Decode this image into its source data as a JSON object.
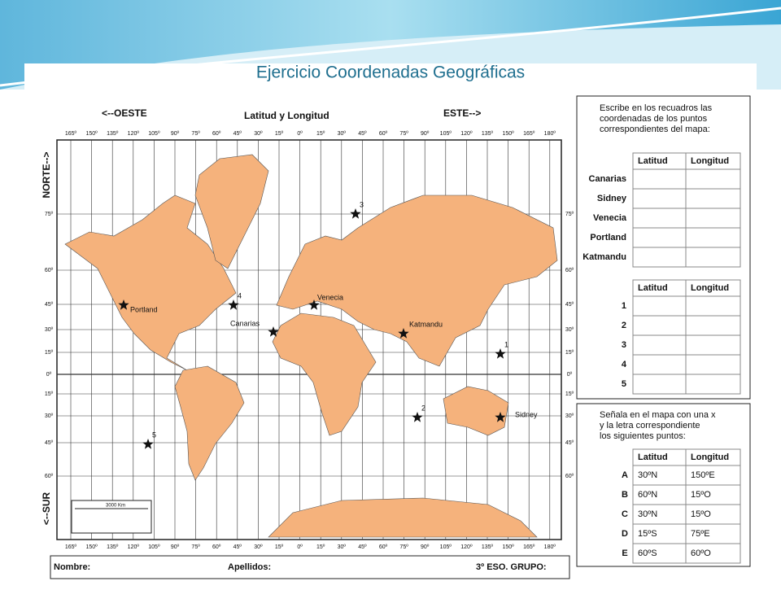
{
  "title": "Ejercicio Coordenadas Geográficas",
  "map": {
    "heading": "Latitud y Longitud",
    "west": "<--OESTE",
    "east": "ESTE-->",
    "north": "NORTE-->",
    "south": "<--SUR",
    "longitudes": [
      "165º",
      "150º",
      "135º",
      "120º",
      "105º",
      "90º",
      "75º",
      "60º",
      "45º",
      "30º",
      "15º",
      "0º",
      "15º",
      "30º",
      "45º",
      "60º",
      "75º",
      "90º",
      "105º",
      "120º",
      "135º",
      "150º",
      "165º",
      "180º"
    ],
    "latitudes": [
      "75º",
      "60º",
      "45º",
      "30º",
      "15º",
      "0º",
      "15º",
      "30º",
      "45º",
      "60º"
    ],
    "places": [
      "Portland",
      "Canarias",
      "Venecia",
      "Katmandu",
      "Sidney"
    ],
    "points": [
      "1",
      "2",
      "3",
      "4",
      "5"
    ],
    "scale": "3000 Km"
  },
  "footer": {
    "name": "Nombre:",
    "surname": "Apellidos:",
    "group": "3º ESO. GRUPO:"
  },
  "panels": [
    {
      "instruction": [
        "Escribe en los recuadros las",
        "coordenadas de los puntos",
        "correspondientes del mapa:"
      ],
      "header": [
        "Latitud",
        "Longitud"
      ],
      "rows": [
        [
          "Canarias"
        ],
        [
          "Sidney"
        ],
        [
          "Venecia"
        ],
        [
          "Portland"
        ],
        [
          "Katmandu"
        ]
      ]
    },
    {
      "header": [
        "Latitud",
        "Longitud"
      ],
      "rows": [
        [
          "1"
        ],
        [
          "2"
        ],
        [
          "3"
        ],
        [
          "4"
        ],
        [
          "5"
        ]
      ]
    },
    {
      "instruction": [
        "Señala en el mapa con una x",
        "y la letra correspondiente",
        "los siguientes puntos:"
      ],
      "header": [
        "Latitud",
        "Longitud"
      ],
      "rows": [
        [
          "A",
          "30ºN",
          "150ºE"
        ],
        [
          "B",
          "60ºN",
          "15ºO"
        ],
        [
          "C",
          "30ºN",
          "15ºO"
        ],
        [
          "D",
          "15ºS",
          "75ºE"
        ],
        [
          "E",
          "60ºS",
          "60ºO"
        ]
      ]
    }
  ]
}
